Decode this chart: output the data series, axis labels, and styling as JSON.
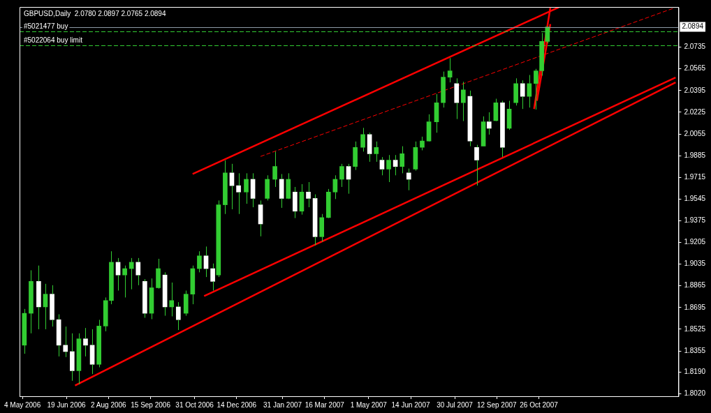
{
  "chart_data": {
    "type": "candlestick",
    "title": "GBPUSD,Daily  2.0780 2.0897 2.0765 2.0894",
    "xlim": [
      "2006-05-01",
      "2008-03-20"
    ],
    "xticks": [
      {
        "value": "2006-05-04",
        "label": "4 May 2006"
      },
      {
        "value": "2006-06-19",
        "label": "19 Jun 2006"
      },
      {
        "value": "2006-08-02",
        "label": "2 Aug 2006"
      },
      {
        "value": "2006-09-15",
        "label": "15 Sep 2006"
      },
      {
        "value": "2006-10-31",
        "label": "31 Oct 2006"
      },
      {
        "value": "2006-12-14",
        "label": "14 Dec 2006"
      },
      {
        "value": "2007-01-31",
        "label": "31 Jan 2007"
      },
      {
        "value": "2007-03-16",
        "label": "16 Mar 2007"
      },
      {
        "value": "2007-05-01",
        "label": "1 May 2007"
      },
      {
        "value": "2007-06-14",
        "label": "14 Jun 2007"
      },
      {
        "value": "2007-07-30",
        "label": "30 Jul 2007"
      },
      {
        "value": "2007-09-12",
        "label": "12 Sep 2007"
      },
      {
        "value": "2007-10-26",
        "label": "26 Oct 2007"
      }
    ],
    "ylim": [
      1.8,
      2.105
    ],
    "yticks": [
      {
        "value": 1.802,
        "label": "1.8020"
      },
      {
        "value": 1.819,
        "label": "1.8190"
      },
      1.8355,
      1.8525,
      1.8695,
      1.8865,
      1.9035,
      1.9205,
      1.9375,
      1.9545,
      1.9715,
      1.9885,
      2.0055,
      2.0225,
      2.0395,
      2.0565,
      2.0735
    ],
    "grid": false,
    "legend": false,
    "series": [
      {
        "color": "#32cd32",
        "colors": [
          "#32cd32",
          "#32cd32",
          "#ffffff",
          "#32cd32",
          "#ffffff",
          "#ffffff",
          "#ffffff",
          "#ffffff",
          "#32cd32",
          "#ffffff",
          "#ffffff",
          "#32cd32",
          "#32cd32",
          "#32cd32",
          "#ffffff",
          "#32cd32",
          "#32cd32",
          "#ffffff",
          "#ffffff",
          "#32cd32",
          "#32cd32",
          "#ffffff",
          "#32cd32",
          "#ffffff",
          "#32cd32",
          "#32cd32",
          "#32cd32",
          "#ffffff",
          "#ffffff",
          "#32cd32",
          "#32cd32",
          "#ffffff",
          "#ffffff",
          "#32cd32",
          "#ffffff",
          "#ffffff",
          "#32cd32",
          "#32cd32",
          "#ffffff",
          "#32cd32",
          "#ffffff",
          "#32cd32",
          "#ffffff",
          "#ffffff",
          "#32cd32",
          "#32cd32",
          "#32cd32",
          "#32cd32",
          "#ffffff",
          "#32cd32",
          "#32cd32",
          "#ffffff",
          "#32cd32",
          "#ffffff",
          "#32cd32",
          "#ffffff",
          "#32cd32",
          "#ffffff",
          "#32cd32",
          "#32cd32",
          "#32cd32",
          "#32cd32",
          "#32cd32",
          "#32cd32",
          "#ffffff",
          "#32cd32",
          "#ffffff",
          "#ffffff",
          "#32cd32",
          "#ffffff",
          "#32cd32",
          "#ffffff",
          "#32cd32",
          "#32cd32",
          "#ffffff",
          "#32cd32",
          "#32cd32",
          "#32cd32",
          "#32cd32"
        ],
        "x": [
          "2006-05-06",
          "2006-05-13",
          "2006-05-21",
          "2006-05-28",
          "2006-06-04",
          "2006-06-11",
          "2006-06-18",
          "2006-06-25",
          "2006-07-02",
          "2006-07-09",
          "2006-07-16",
          "2006-07-23",
          "2006-07-30",
          "2006-08-05",
          "2006-08-12",
          "2006-08-19",
          "2006-08-26",
          "2006-09-02",
          "2006-09-09",
          "2006-09-16",
          "2006-09-23",
          "2006-09-30",
          "2006-10-07",
          "2006-10-14",
          "2006-10-22",
          "2006-10-29",
          "2006-11-05",
          "2006-11-12",
          "2006-11-19",
          "2006-11-25",
          "2006-12-02",
          "2006-12-09",
          "2006-12-16",
          "2006-12-24",
          "2006-12-31",
          "2007-01-08",
          "2007-01-15",
          "2007-01-23",
          "2007-01-30",
          "2007-02-06",
          "2007-02-13",
          "2007-02-20",
          "2007-02-27",
          "2007-03-06",
          "2007-03-13",
          "2007-03-20",
          "2007-03-27",
          "2007-04-03",
          "2007-04-10",
          "2007-04-17",
          "2007-04-25",
          "2007-05-02",
          "2007-05-09",
          "2007-05-15",
          "2007-05-22",
          "2007-05-29",
          "2007-06-05",
          "2007-06-12",
          "2007-06-19",
          "2007-06-26",
          "2007-07-03",
          "2007-07-11",
          "2007-07-18",
          "2007-07-25",
          "2007-08-01",
          "2007-08-08",
          "2007-08-15",
          "2007-08-22",
          "2007-08-29",
          "2007-09-04",
          "2007-09-11",
          "2007-09-18",
          "2007-09-25",
          "2007-10-02",
          "2007-10-09",
          "2007-10-16",
          "2007-10-23",
          "2007-10-29",
          "2007-11-04"
        ],
        "ohlc": [
          [
            1.84,
            1.8684,
            1.8333,
            1.865
          ],
          [
            1.865,
            1.8987,
            1.8493,
            1.89
          ],
          [
            1.89,
            1.9024,
            1.8525,
            1.87
          ],
          [
            1.87,
            1.8881,
            1.8525,
            1.88
          ],
          [
            1.88,
            1.887,
            1.8546,
            1.86
          ],
          [
            1.86,
            1.8642,
            1.8312,
            1.84
          ],
          [
            1.84,
            1.8546,
            1.8307,
            1.835
          ],
          [
            1.835,
            1.8493,
            1.8121,
            1.82
          ],
          [
            1.82,
            1.8493,
            1.8094,
            1.845
          ],
          [
            1.845,
            1.8535,
            1.8312,
            1.84
          ],
          [
            1.84,
            1.8525,
            1.8174,
            1.825
          ],
          [
            1.825,
            1.8599,
            1.8227,
            1.855
          ],
          [
            1.855,
            1.8774,
            1.8509,
            1.875
          ],
          [
            1.875,
            1.9136,
            1.8721,
            1.905
          ],
          [
            1.905,
            1.9083,
            1.8828,
            1.895
          ],
          [
            1.895,
            1.9024,
            1.8774,
            1.9
          ],
          [
            1.9,
            1.9083,
            1.8838,
            1.905
          ],
          [
            1.905,
            1.9083,
            1.887,
            1.895
          ],
          [
            1.89,
            1.8918,
            1.8615,
            1.865
          ],
          [
            1.865,
            1.8923,
            1.8604,
            1.885
          ],
          [
            1.885,
            1.9077,
            1.8843,
            1.9
          ],
          [
            1.895,
            1.8971,
            1.8631,
            1.87
          ],
          [
            1.87,
            1.8891,
            1.8626,
            1.875
          ],
          [
            1.87,
            1.8737,
            1.8519,
            1.86
          ],
          [
            1.865,
            1.8828,
            1.8631,
            1.88
          ],
          [
            1.88,
            1.9024,
            1.8721,
            1.9
          ],
          [
            1.9,
            1.9136,
            1.8971,
            1.91
          ],
          [
            1.91,
            1.9173,
            1.8934,
            1.9
          ],
          [
            1.9,
            1.904,
            1.8828,
            1.89
          ],
          [
            1.895,
            1.9534,
            1.8934,
            1.95
          ],
          [
            1.95,
            1.9848,
            1.9428,
            1.975
          ],
          [
            1.975,
            1.9821,
            1.9465,
            1.965
          ],
          [
            1.965,
            1.9747,
            1.9428,
            1.96
          ],
          [
            1.96,
            1.9747,
            1.9508,
            1.97
          ],
          [
            1.97,
            1.9747,
            1.9481,
            1.955
          ],
          [
            1.95,
            1.9534,
            1.9253,
            1.935
          ],
          [
            1.955,
            1.9731,
            1.9534,
            1.97
          ],
          [
            1.97,
            1.9917,
            1.964,
            1.98
          ],
          [
            1.97,
            1.9741,
            1.9476,
            1.955
          ],
          [
            1.955,
            1.9747,
            1.9545,
            1.97
          ],
          [
            1.96,
            1.964,
            1.9396,
            1.945
          ],
          [
            1.945,
            1.9662,
            1.9423,
            1.96
          ],
          [
            1.96,
            1.9678,
            1.9481,
            1.955
          ],
          [
            1.955,
            1.9582,
            1.9183,
            1.925
          ],
          [
            1.925,
            1.9428,
            1.921,
            1.94
          ],
          [
            1.94,
            1.9624,
            1.9396,
            1.96
          ],
          [
            1.96,
            1.9731,
            1.9545,
            1.97
          ],
          [
            1.97,
            1.9821,
            1.964,
            1.98
          ],
          [
            1.98,
            1.9821,
            1.9587,
            1.97
          ],
          [
            1.98,
            1.9996,
            1.9773,
            1.995
          ],
          [
            1.995,
            2.0103,
            1.9917,
            2.005
          ],
          [
            2.005,
            2.0065,
            1.9837,
            1.99
          ],
          [
            1.99,
            1.9996,
            1.9837,
            1.995
          ],
          [
            1.985,
            1.9874,
            1.9731,
            1.978
          ],
          [
            1.978,
            1.989,
            1.9678,
            1.985
          ],
          [
            1.985,
            1.989,
            1.9731,
            1.98
          ],
          [
            1.98,
            1.9959,
            1.9747,
            1.99
          ],
          [
            1.975,
            1.9784,
            1.9614,
            1.97
          ],
          [
            1.978,
            1.9996,
            1.9768,
            1.995
          ],
          [
            1.995,
            2.0034,
            1.9927,
            2.0
          ],
          [
            2.0,
            2.0209,
            1.9996,
            2.015
          ],
          [
            2.015,
            2.0368,
            2.0065,
            2.03
          ],
          [
            2.03,
            2.0544,
            2.0262,
            2.05
          ],
          [
            2.05,
            2.065,
            2.0459,
            2.055
          ],
          [
            2.045,
            2.0491,
            2.0172,
            2.03
          ],
          [
            2.03,
            2.0464,
            2.0156,
            2.04
          ],
          [
            2.035,
            2.0395,
            1.9959,
            2.0
          ],
          [
            1.995,
            1.997,
            1.9651,
            1.985
          ],
          [
            1.996,
            2.0193,
            1.9959,
            2.015
          ],
          [
            2.015,
            2.0225,
            2.005,
            2.01
          ],
          [
            2.016,
            2.0331,
            2.0156,
            2.03
          ],
          [
            2.03,
            2.0315,
            1.9874,
            1.995
          ],
          [
            2.01,
            2.0315,
            2.0087,
            2.025
          ],
          [
            2.03,
            2.0491,
            2.0278,
            2.045
          ],
          [
            2.045,
            2.0475,
            2.0251,
            2.035
          ],
          [
            2.035,
            2.0517,
            2.0262,
            2.045
          ],
          [
            2.045,
            2.0565,
            2.0246,
            2.055
          ],
          [
            2.055,
            2.0846,
            2.0512,
            2.078
          ],
          [
            2.078,
            2.0897,
            2.0765,
            2.0894
          ]
        ]
      },
      {
        "type": "line",
        "color": "#ff0000",
        "line_style": "solid",
        "x": [
          "2006-10-29",
          "2007-11-16"
        ],
        "values": [
          1.9741,
          2.1048
        ]
      },
      {
        "type": "line",
        "color": "#ff0000",
        "line_style": "dashed",
        "x": [
          "2007-01-08",
          "2008-03-14"
        ],
        "values": [
          1.9879,
          2.1038
        ]
      },
      {
        "type": "line",
        "color": "#ff0000",
        "line_style": "solid",
        "x": [
          "2006-11-10",
          "2008-03-17"
        ],
        "values": [
          1.8785,
          2.0497
        ]
      },
      {
        "type": "line",
        "color": "#ff0000",
        "line_style": "solid",
        "x": [
          "2006-06-28",
          "2008-03-17"
        ],
        "values": [
          1.8084,
          2.0459
        ]
      },
      {
        "type": "line",
        "color": "#ff0000",
        "line_style": "solid",
        "x": [
          "2007-10-21",
          "2007-11-07"
        ],
        "values": [
          2.0251,
          2.1043
        ]
      },
      {
        "type": "line",
        "color": "#ff0000",
        "line_style": "solid",
        "x": [
          "2007-10-24",
          "2007-11-07"
        ],
        "values": [
          2.0315,
          2.0916
        ]
      }
    ],
    "ref_lines": [
      {
        "axis": "y",
        "value": 2.0894,
        "label": "2.0894",
        "color": "#8c9aa5",
        "line_style": "solid"
      },
      {
        "axis": "y",
        "value": 2.086,
        "label": "#5021477 buy",
        "color": "#32cd32",
        "line_style": "dashed"
      },
      {
        "axis": "y",
        "value": 2.0751,
        "label": "#5022064 buy limit",
        "color": "#32cd32",
        "line_style": "dashed"
      }
    ]
  }
}
